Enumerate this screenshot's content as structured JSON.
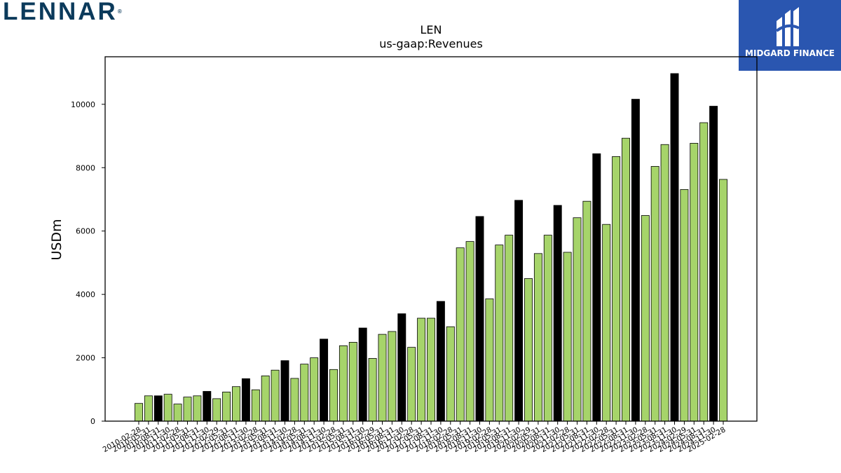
{
  "brand": {
    "company_logo_text": "LENNAR",
    "company_logo_reg": "®",
    "publisher_name": "MIDGARD FINANCE",
    "publisher_color": "#2a56b0",
    "company_color": "#0b3a5b"
  },
  "chart_data": {
    "type": "bar",
    "title": "LEN",
    "subtitle": "us-gaap:Revenues",
    "ylabel": "USDm",
    "xlabel": "",
    "ylim": [
      0,
      11500
    ],
    "yticks": [
      0,
      2000,
      4000,
      6000,
      8000,
      10000
    ],
    "grid": false,
    "colors": {
      "quarter": "#a6d46a",
      "annual": "#000000",
      "edge": "#000000"
    },
    "categories": [
      "2010-02-28",
      "2010-05-31",
      "2010-08-31",
      "2010-11-30",
      "2011-02-28",
      "2011-05-31",
      "2011-08-31",
      "2011-11-30",
      "2012-02-29",
      "2012-05-31",
      "2012-08-31",
      "2012-11-30",
      "2013-02-28",
      "2013-05-31",
      "2013-08-31",
      "2013-11-30",
      "2014-02-28",
      "2014-05-31",
      "2014-08-31",
      "2014-11-30",
      "2015-02-28",
      "2015-05-31",
      "2015-08-31",
      "2015-11-30",
      "2016-02-29",
      "2016-05-31",
      "2016-08-31",
      "2016-11-30",
      "2017-02-28",
      "2017-05-31",
      "2017-08-31",
      "2017-11-30",
      "2018-02-28",
      "2018-05-31",
      "2018-08-31",
      "2018-11-30",
      "2019-02-28",
      "2019-05-31",
      "2019-08-31",
      "2019-11-30",
      "2020-02-29",
      "2020-05-31",
      "2020-08-31",
      "2020-11-30",
      "2021-02-28",
      "2021-05-31",
      "2021-08-31",
      "2021-11-30",
      "2022-02-28",
      "2022-05-31",
      "2022-08-31",
      "2022-11-30",
      "2023-02-28",
      "2023-05-31",
      "2023-08-31",
      "2023-11-30",
      "2024-02-29",
      "2024-05-31",
      "2024-08-31",
      "2024-11-30",
      "2025-02-28"
    ],
    "values": [
      560,
      800,
      800,
      850,
      540,
      760,
      800,
      940,
      710,
      920,
      1090,
      1340,
      990,
      1430,
      1610,
      1910,
      1350,
      1800,
      2000,
      2590,
      1630,
      2380,
      2490,
      2940,
      1980,
      2740,
      2830,
      3390,
      2330,
      3250,
      3250,
      3780,
      2980,
      5470,
      5670,
      6460,
      3860,
      5560,
      5870,
      6970,
      4500,
      5290,
      5870,
      6810,
      5330,
      6420,
      6940,
      8440,
      6210,
      8350,
      8930,
      10160,
      6490,
      8040,
      8730,
      10970,
      7310,
      8770,
      9420,
      9940,
      7630
    ],
    "annual_flags": [
      false,
      false,
      true,
      false,
      false,
      false,
      false,
      true,
      false,
      false,
      false,
      true,
      false,
      false,
      false,
      true,
      false,
      false,
      false,
      true,
      false,
      false,
      false,
      true,
      false,
      false,
      false,
      true,
      false,
      false,
      false,
      true,
      false,
      false,
      false,
      true,
      false,
      false,
      false,
      true,
      false,
      false,
      false,
      true,
      false,
      false,
      false,
      true,
      false,
      false,
      false,
      true,
      false,
      false,
      false,
      true,
      false,
      false,
      false,
      true,
      false
    ]
  }
}
